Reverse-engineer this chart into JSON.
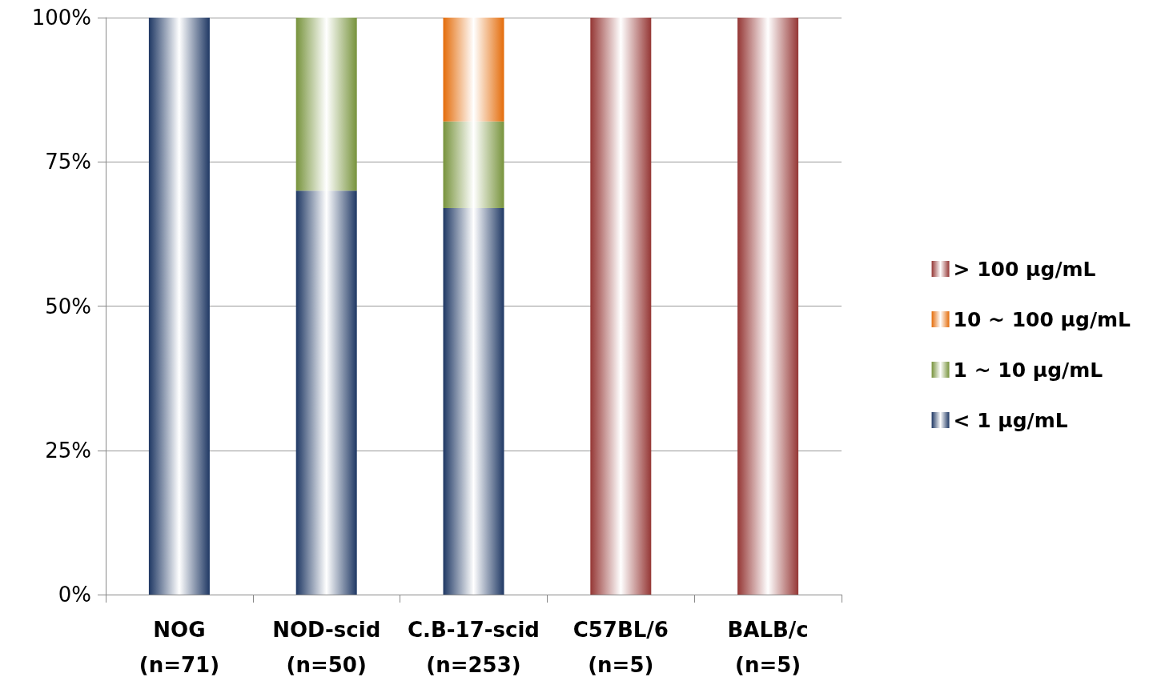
{
  "chart_data": {
    "type": "bar",
    "stacked": true,
    "categories": [
      "NOG\n(n=71)",
      "NOD-scid\n(n=50)",
      "C.B-17-scid\n(n=253)",
      "C57BL/6\n(n=5)",
      "BALB/c\n(n=5)"
    ],
    "series": [
      {
        "name": "< 1 μg/mL",
        "color": "#1f3864",
        "values": [
          100,
          70,
          67,
          0,
          0
        ]
      },
      {
        "name": "1 ~ 10 μg/mL",
        "color": "#77933c",
        "values": [
          0,
          30,
          15,
          0,
          0
        ]
      },
      {
        "name": "10 ~ 100 μg/mL",
        "color": "#e46c0a",
        "values": [
          0,
          0,
          18,
          0,
          0
        ]
      },
      {
        "name": "> 100 μg/mL",
        "color": "#953735",
        "values": [
          0,
          0,
          0,
          100,
          100
        ]
      }
    ],
    "ylim": [
      0,
      100
    ],
    "yticks": [
      {
        "value": 0,
        "label": "0%"
      },
      {
        "value": 25,
        "label": "25%"
      },
      {
        "value": 50,
        "label": "50%"
      },
      {
        "value": 75,
        "label": "75%"
      },
      {
        "value": 100,
        "label": "100%"
      }
    ],
    "grid": "y",
    "legend": "right"
  }
}
